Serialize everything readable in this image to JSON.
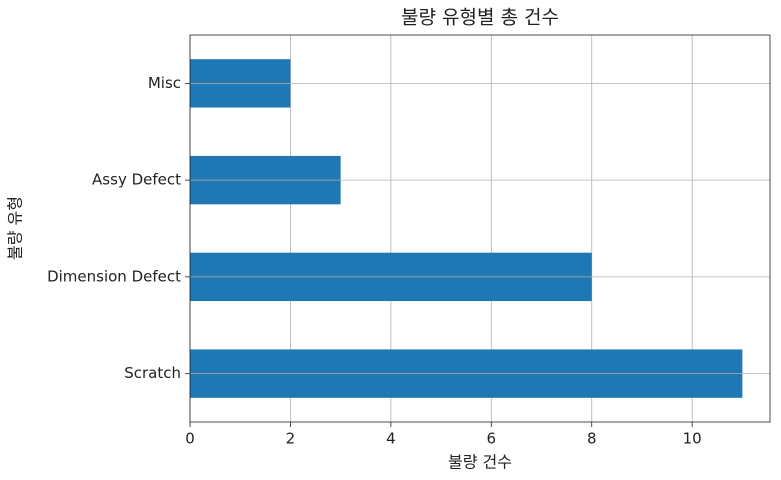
{
  "chart_data": {
    "type": "barh",
    "title": "불량 유형별 총 건수",
    "x_label": "불량 건수",
    "y_label": "불량 유형",
    "categories": [
      "Scratch",
      "Dimension Defect",
      "Assy Defect",
      "Misc"
    ],
    "values": [
      11,
      8,
      3,
      2
    ],
    "color": "#1f77b4",
    "xlim": [
      0,
      11.55
    ],
    "xticks": [
      0,
      2,
      4,
      6,
      8,
      10
    ],
    "grid": true
  }
}
